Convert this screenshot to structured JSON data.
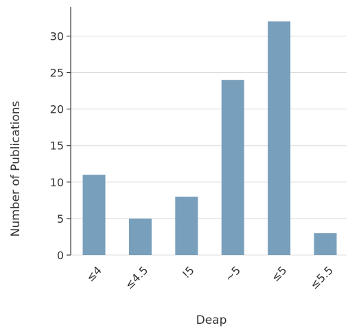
{
  "chart_data": {
    "type": "bar",
    "title": "",
    "xlabel": "Deap",
    "ylabel": "Number of Publications",
    "categories": [
      "≤4",
      "≤4.5",
      "!5",
      "~5",
      "≤5",
      "≤5.5"
    ],
    "values": [
      11,
      5,
      8,
      24,
      32,
      3
    ],
    "ylim": [
      0,
      34
    ],
    "yticks": [
      0,
      5,
      10,
      15,
      20,
      25,
      30
    ],
    "grid": "horizontal",
    "bar_color": "#789fbb"
  }
}
